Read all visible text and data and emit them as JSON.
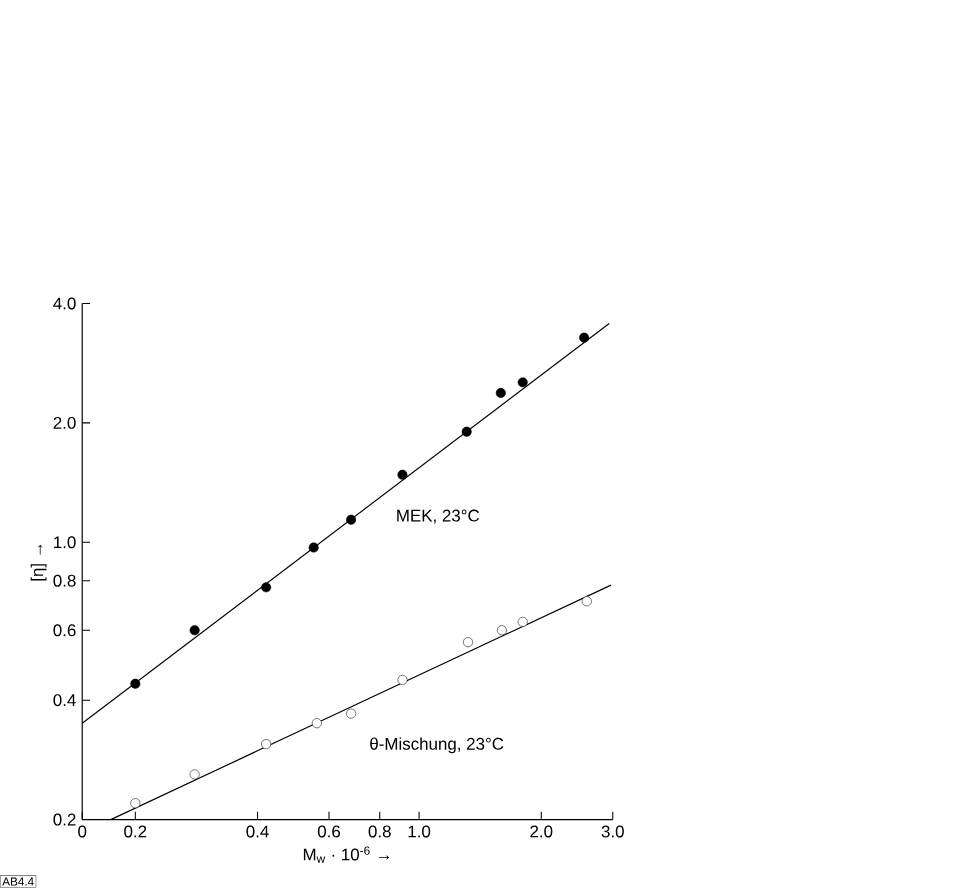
{
  "chart_data": {
    "type": "scatter",
    "log": "xy",
    "grid": false,
    "xlabel": "M$_{w}$ · 10$^{-6}$ →",
    "ylabel": "[η] →",
    "xlim": [
      0.148,
      3.0
    ],
    "ylim": [
      0.2,
      4.0
    ],
    "xticks": [
      {
        "value": 0.148,
        "label": "0"
      },
      {
        "value": 0.2,
        "label": "0.2"
      },
      {
        "value": 0.4,
        "label": "0.4"
      },
      {
        "value": 0.6,
        "label": "0.6"
      },
      {
        "value": 0.8,
        "label": "0.8"
      },
      {
        "value": 1,
        "label": "1.0"
      },
      {
        "value": 2,
        "label": "2.0"
      },
      {
        "value": 3,
        "label": "3.0"
      }
    ],
    "yticks": [
      {
        "value": 0.2,
        "label": "0.2"
      },
      {
        "value": 0.4,
        "label": "0.4"
      },
      {
        "value": 0.6,
        "label": "0.6"
      },
      {
        "value": 0.8,
        "label": "0.8"
      },
      {
        "value": 1,
        "label": "1.0"
      },
      {
        "value": 2,
        "label": "2.0"
      },
      {
        "value": 4,
        "label": "4.0"
      }
    ],
    "series": [
      {
        "name": "MEK, 23°C",
        "color": "#000000",
        "marker": "circle",
        "x": [
          0.2,
          0.28,
          0.42,
          0.55,
          0.68,
          0.91,
          1.31,
          1.59,
          1.8,
          2.55
        ],
        "values": [
          0.44,
          0.6,
          0.77,
          0.97,
          1.14,
          1.48,
          1.9,
          2.38,
          2.53,
          3.28
        ]
      },
      {
        "name": "θ-Mischung, 23°C",
        "color": "#000000",
        "marker": "open circle",
        "x": [
          0.2,
          0.28,
          0.42,
          0.56,
          0.68,
          0.91,
          1.32,
          1.6,
          1.8,
          2.59
        ],
        "values": [
          0.22,
          0.26,
          0.31,
          0.35,
          0.37,
          0.45,
          0.56,
          0.6,
          0.63,
          0.71
        ]
      },
      {
        "type": "line",
        "color": "#000000",
        "line_style": "solid",
        "marker": "none",
        "x": [
          0.148,
          2.94
        ],
        "values": [
          0.35,
          3.56
        ]
      },
      {
        "type": "line",
        "color": "#000000",
        "line_style": "solid",
        "marker": "none",
        "x": [
          0.174,
          2.97
        ],
        "values": [
          0.2,
          0.78
        ]
      }
    ],
    "annotations": [
      "AB4.4"
    ]
  }
}
